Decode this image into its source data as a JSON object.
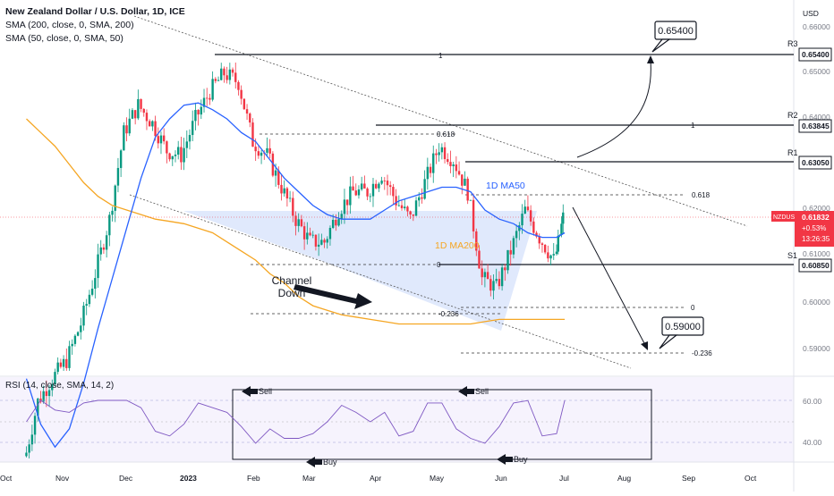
{
  "header": {
    "title": "New Zealand Dollar / U.S. Dollar, 1D, ICE",
    "indicators": [
      "SMA (200, close, 0, SMA, 200)",
      "SMA (50, close, 0, SMA, 50)"
    ],
    "currency": "USD"
  },
  "rsi_label": "RSI (14, close, SMA, 14, 2)",
  "price_axis": {
    "ticks": [
      "0.66000",
      "0.65000",
      "0.64000",
      "0.62000",
      "0.61000",
      "0.60000",
      "0.59000"
    ],
    "rsi_ticks": [
      "60.00",
      "40.00"
    ]
  },
  "time_axis": [
    "Oct",
    "Nov",
    "Dec",
    "2023",
    "Feb",
    "Mar",
    "Apr",
    "May",
    "Jun",
    "Jul",
    "Aug",
    "Sep",
    "Oct"
  ],
  "current_price": {
    "symbol": "NZDUSD",
    "price": "0.61832",
    "change": "+0.53%",
    "countdown": "13:26:35",
    "color": "#f23645"
  },
  "levels": [
    {
      "name": "R3",
      "value": "0.65400"
    },
    {
      "name": "R2",
      "value": "0.63845"
    },
    {
      "name": "R1",
      "value": "0.63050"
    },
    {
      "name": "S1",
      "value": "0.60850"
    }
  ],
  "fib_labels": {
    "top1": "1",
    "r2_1": "1",
    "f618a": "0.618",
    "f618b": "0.618",
    "zero1": "0",
    "zero2": "0",
    "neg1": "-0.236",
    "neg2": "-0.236"
  },
  "annotations": {
    "target_up": "0.65400",
    "target_down": "0.59000",
    "ma50": "1D MA50",
    "ma200": "1D MA200",
    "channel_line1": "Channel",
    "channel_line2": "Down",
    "rsi_sell1": "Sell",
    "rsi_sell2": "Sell",
    "rsi_buy1": "Buy",
    "rsi_buy2": "Buy"
  },
  "colors": {
    "up": "#089981",
    "down": "#f23645",
    "ma50": "#2962ff",
    "ma200": "#f5a623",
    "rsi": "#7e57c2",
    "channel_fill": "#dbe5fb"
  },
  "chart_data": {
    "type": "candlestick",
    "symbol": "NZDUSD",
    "timeframe": "1D",
    "x": [
      "2022-10-13",
      "2022-10-20",
      "2022-10-27",
      "2022-11-03",
      "2022-11-10",
      "2022-11-17",
      "2022-11-24",
      "2022-12-01",
      "2022-12-08",
      "2022-12-15",
      "2022-12-22",
      "2022-12-29",
      "2023-01-05",
      "2023-01-12",
      "2023-01-19",
      "2023-01-26",
      "2023-02-02",
      "2023-02-09",
      "2023-02-16",
      "2023-02-23",
      "2023-03-02",
      "2023-03-09",
      "2023-03-16",
      "2023-03-23",
      "2023-03-30",
      "2023-04-06",
      "2023-04-13",
      "2023-04-20",
      "2023-04-27",
      "2023-05-04",
      "2023-05-11",
      "2023-05-18",
      "2023-05-25",
      "2023-06-01",
      "2023-06-08",
      "2023-06-15",
      "2023-06-22",
      "2023-06-29",
      "2023-07-03"
    ],
    "close": [
      0.564,
      0.578,
      0.583,
      0.587,
      0.595,
      0.606,
      0.618,
      0.637,
      0.643,
      0.639,
      0.633,
      0.632,
      0.64,
      0.646,
      0.65,
      0.648,
      0.635,
      0.632,
      0.625,
      0.618,
      0.613,
      0.613,
      0.62,
      0.624,
      0.624,
      0.628,
      0.622,
      0.618,
      0.626,
      0.634,
      0.631,
      0.624,
      0.605,
      0.603,
      0.611,
      0.62,
      0.614,
      0.609,
      0.6183
    ],
    "sma50": [
      0.583,
      0.573,
      0.568,
      0.572,
      0.582,
      0.594,
      0.605,
      0.616,
      0.627,
      0.636,
      0.64,
      0.643,
      0.6435,
      0.642,
      0.64,
      0.637,
      0.635,
      0.631,
      0.627,
      0.624,
      0.621,
      0.619,
      0.618,
      0.618,
      0.618,
      0.62,
      0.622,
      0.623,
      0.624,
      0.625,
      0.625,
      0.624,
      0.62,
      0.618,
      0.617,
      0.615,
      0.614,
      0.614,
      0.615
    ],
    "sma200": [
      0.64,
      0.637,
      0.634,
      0.63,
      0.626,
      0.623,
      0.621,
      0.62,
      0.619,
      0.618,
      0.6175,
      0.617,
      0.616,
      0.615,
      0.613,
      0.611,
      0.609,
      0.606,
      0.604,
      0.601,
      0.599,
      0.598,
      0.597,
      0.5965,
      0.596,
      0.5955,
      0.595,
      0.595,
      0.595,
      0.595,
      0.595,
      0.595,
      0.5955,
      0.596,
      0.596,
      0.596,
      0.596,
      0.596,
      0.596
    ],
    "rsi_range": [
      30,
      70
    ],
    "ylim": [
      0.585,
      0.665
    ],
    "horizontal_levels": {
      "R3": 0.654,
      "R2": 0.63845,
      "R1": 0.6305,
      "S1": 0.6085
    },
    "targets": [
      0.654,
      0.59
    ]
  }
}
